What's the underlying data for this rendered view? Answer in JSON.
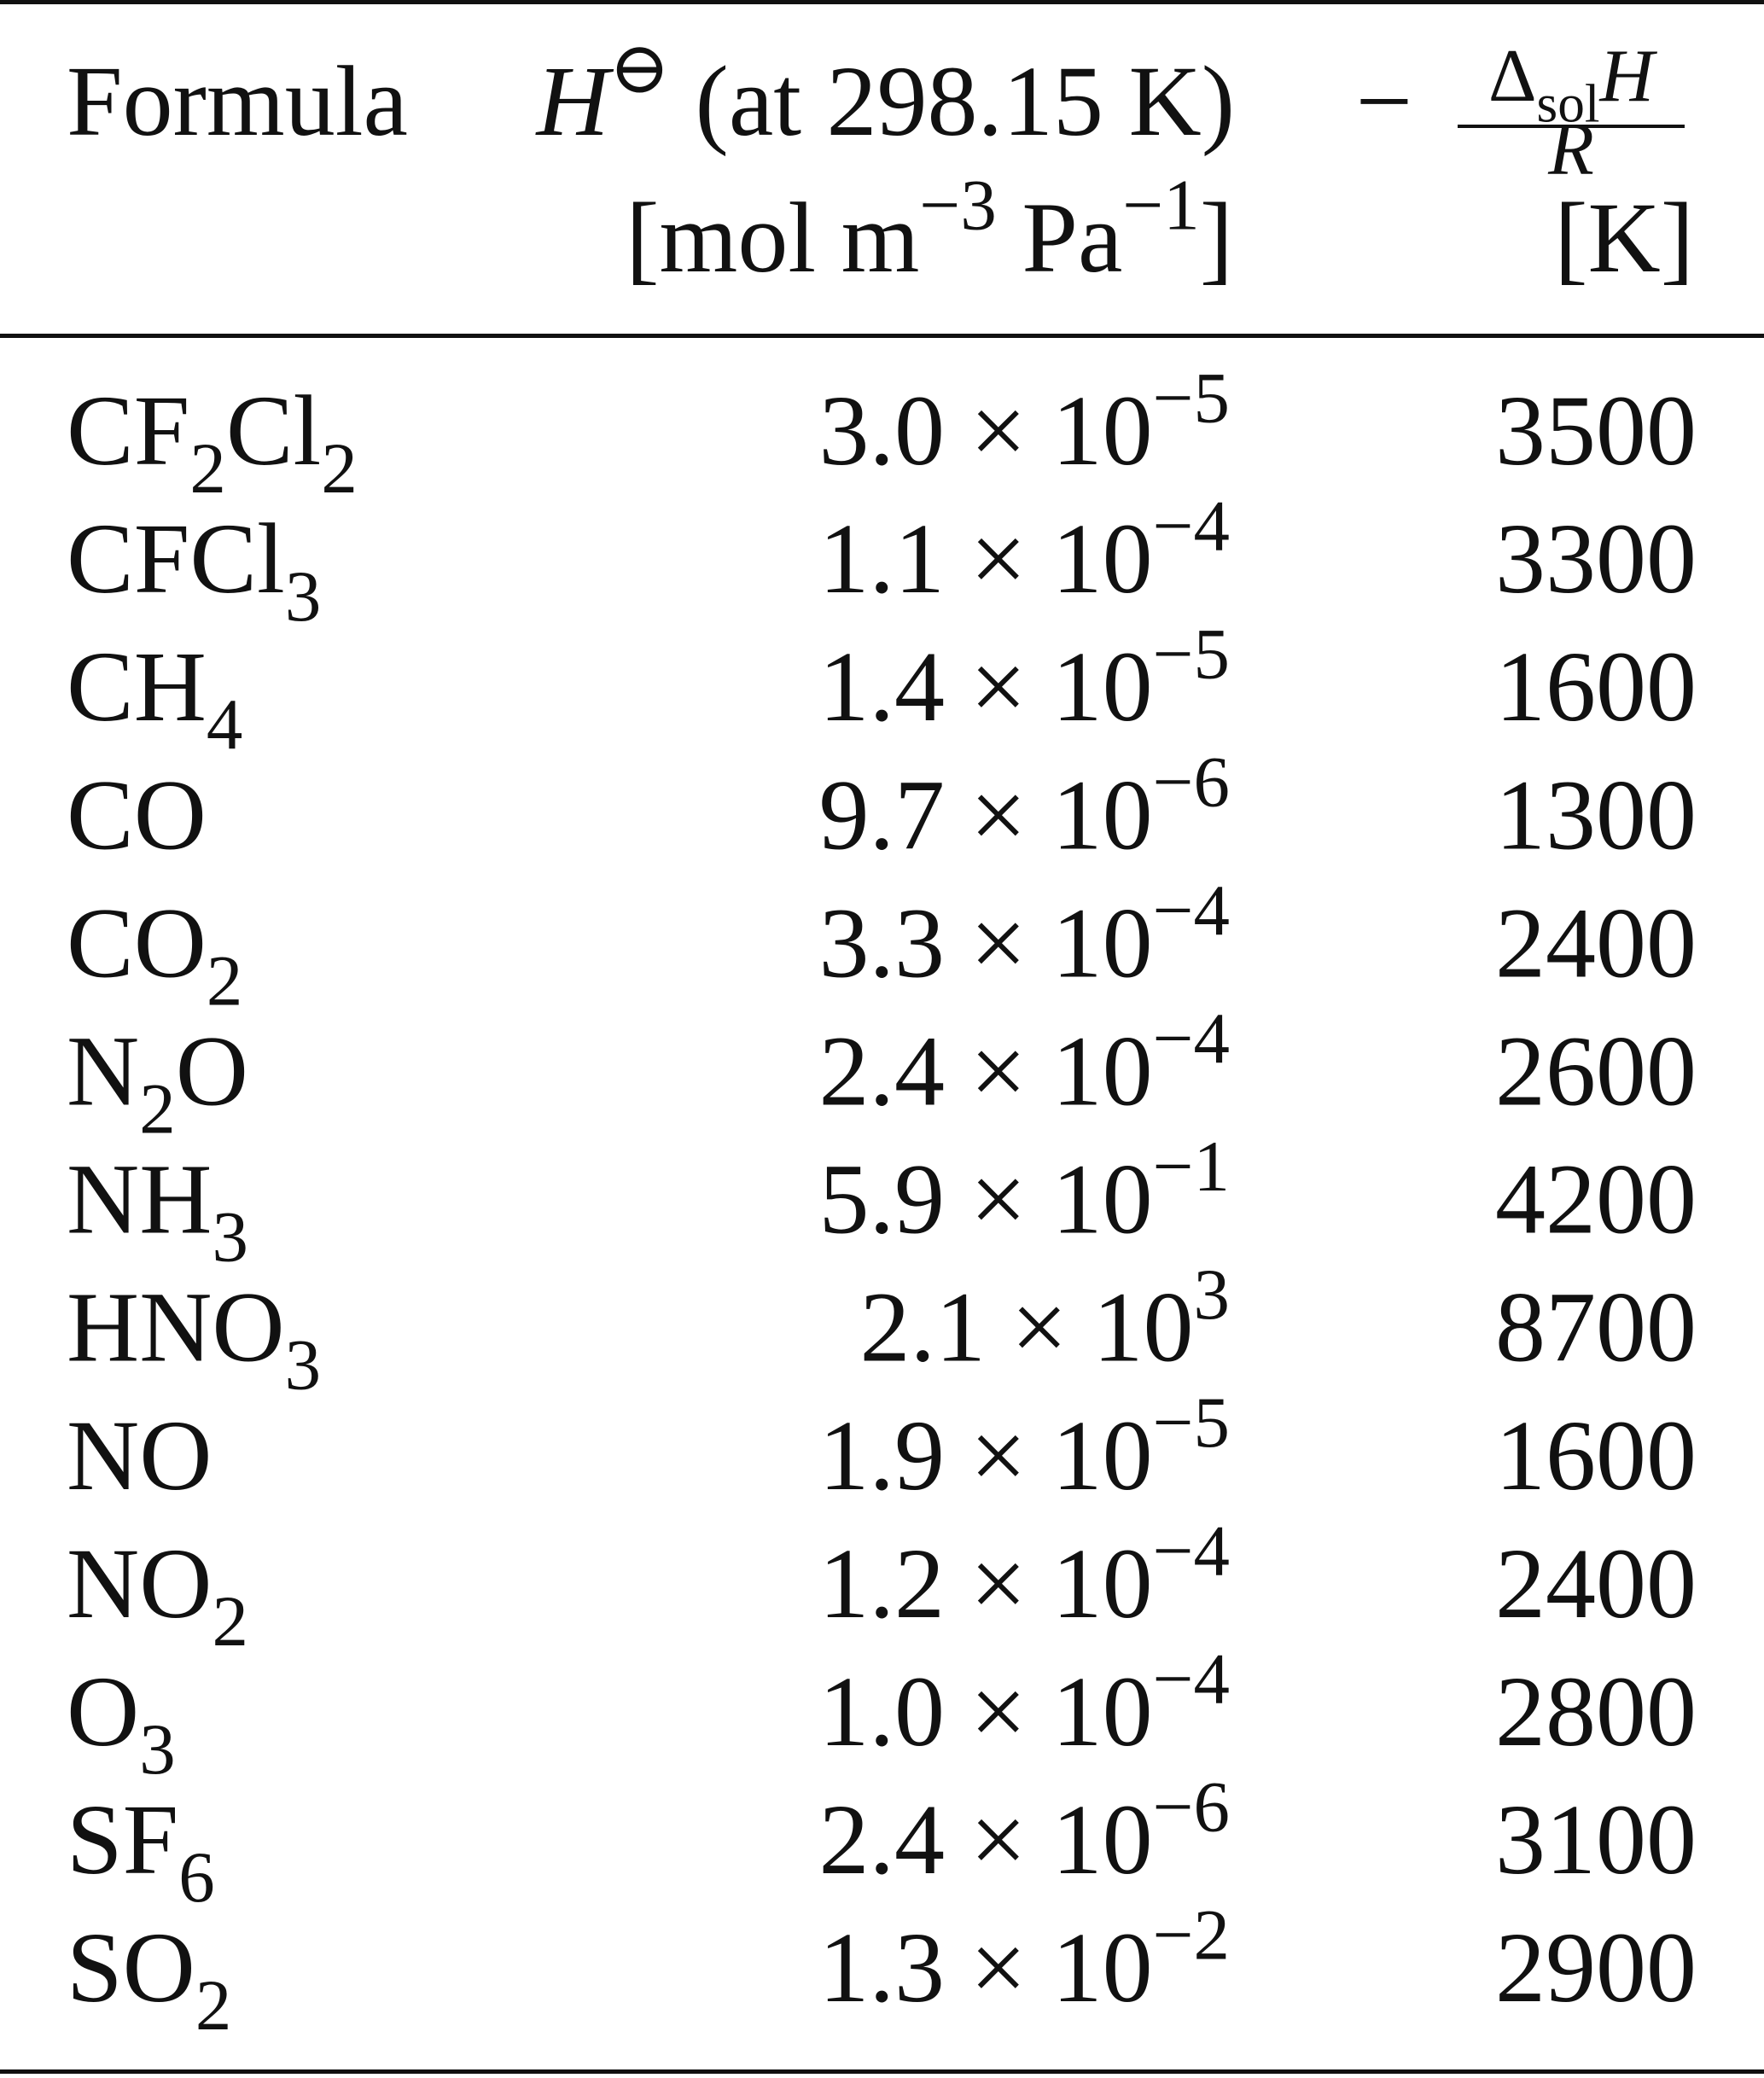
{
  "table": {
    "header": {
      "formula": "Formula",
      "henry": [
        [
          {
            "text": "H",
            "italic": true
          },
          {
            "sup": "⊖"
          },
          {
            "text": " (at 298.15 K)"
          }
        ],
        [
          {
            "text": "[mol m"
          },
          {
            "sup": "−3"
          },
          {
            "text": " Pa"
          },
          {
            "sup": "−1"
          },
          {
            "text": "]"
          }
        ]
      ],
      "enthalpy": {
        "sign": "−",
        "numerator": [
          {
            "text": "Δ"
          },
          {
            "sub": "sol"
          },
          {
            "text": "H",
            "italic": true
          }
        ],
        "denominator": [
          {
            "text": "R",
            "italic": true
          }
        ],
        "unit": "[K]"
      }
    },
    "rows": [
      {
        "formula": [
          {
            "text": "CF"
          },
          {
            "sub": "2"
          },
          {
            "text": "Cl"
          },
          {
            "sub": "2"
          }
        ],
        "henry": [
          {
            "text": "3.0 × 10"
          },
          {
            "sup": "−5"
          }
        ],
        "enthalpy": "3500"
      },
      {
        "formula": [
          {
            "text": "CFCl"
          },
          {
            "sub": "3"
          }
        ],
        "henry": [
          {
            "text": "1.1 × 10"
          },
          {
            "sup": "−4"
          }
        ],
        "enthalpy": "3300"
      },
      {
        "formula": [
          {
            "text": "CH"
          },
          {
            "sub": "4"
          }
        ],
        "henry": [
          {
            "text": "1.4 × 10"
          },
          {
            "sup": "−5"
          }
        ],
        "enthalpy": "1600"
      },
      {
        "formula": [
          {
            "text": "CO"
          }
        ],
        "henry": [
          {
            "text": "9.7 × 10"
          },
          {
            "sup": "−6"
          }
        ],
        "enthalpy": "1300"
      },
      {
        "formula": [
          {
            "text": "CO"
          },
          {
            "sub": "2"
          }
        ],
        "henry": [
          {
            "text": "3.3 × 10"
          },
          {
            "sup": "−4"
          }
        ],
        "enthalpy": "2400"
      },
      {
        "formula": [
          {
            "text": "N"
          },
          {
            "sub": "2"
          },
          {
            "text": "O"
          }
        ],
        "henry": [
          {
            "text": "2.4 × 10"
          },
          {
            "sup": "−4"
          }
        ],
        "enthalpy": "2600"
      },
      {
        "formula": [
          {
            "text": "NH"
          },
          {
            "sub": "3"
          }
        ],
        "henry": [
          {
            "text": "5.9 × 10"
          },
          {
            "sup": "−1"
          }
        ],
        "enthalpy": "4200"
      },
      {
        "formula": [
          {
            "text": "HNO"
          },
          {
            "sub": "3"
          }
        ],
        "henry": [
          {
            "text": "2.1 × 10"
          },
          {
            "sup": "3"
          }
        ],
        "enthalpy": "8700"
      },
      {
        "formula": [
          {
            "text": "NO"
          }
        ],
        "henry": [
          {
            "text": "1.9 × 10"
          },
          {
            "sup": "−5"
          }
        ],
        "enthalpy": "1600"
      },
      {
        "formula": [
          {
            "text": "NO"
          },
          {
            "sub": "2"
          }
        ],
        "henry": [
          {
            "text": "1.2 × 10"
          },
          {
            "sup": "−4"
          }
        ],
        "enthalpy": "2400"
      },
      {
        "formula": [
          {
            "text": "O"
          },
          {
            "sub": "3"
          }
        ],
        "henry": [
          {
            "text": "1.0 × 10"
          },
          {
            "sup": "−4"
          }
        ],
        "enthalpy": "2800"
      },
      {
        "formula": [
          {
            "text": "SF"
          },
          {
            "sub": "6"
          }
        ],
        "henry": [
          {
            "text": "2.4 × 10"
          },
          {
            "sup": "−6"
          }
        ],
        "enthalpy": "3100"
      },
      {
        "formula": [
          {
            "text": "SO"
          },
          {
            "sub": "2"
          }
        ],
        "henry": [
          {
            "text": "1.3 × 10"
          },
          {
            "sup": "−2"
          }
        ],
        "enthalpy": "2900"
      }
    ]
  }
}
